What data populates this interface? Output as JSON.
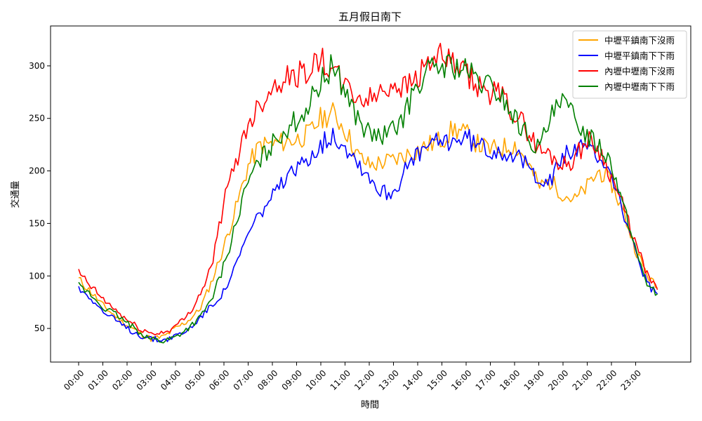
{
  "chart_data": {
    "type": "line",
    "title": "五月假日南下",
    "xlabel": "時間",
    "ylabel": "交通量",
    "ylim": [
      18,
      338
    ],
    "yticks": [
      50,
      100,
      150,
      200,
      250,
      300
    ],
    "xticks": [
      "00:00",
      "01:00",
      "02:00",
      "03:00",
      "04:00",
      "05:00",
      "06:00",
      "07:00",
      "08:00",
      "09:00",
      "10:00",
      "11:00",
      "12:00",
      "13:00",
      "14:00",
      "15:00",
      "16:00",
      "17:00",
      "18:00",
      "19:00",
      "20:00",
      "21:00",
      "22:00",
      "23:00"
    ],
    "x_unit": "hour of day",
    "x": [
      0,
      0.5,
      1,
      1.5,
      2,
      2.5,
      3,
      3.5,
      4,
      4.5,
      5,
      5.5,
      6,
      6.5,
      7,
      7.5,
      8,
      8.5,
      9,
      9.5,
      10,
      10.5,
      11,
      11.5,
      12,
      12.5,
      13,
      13.5,
      14,
      14.5,
      15,
      15.5,
      16,
      16.5,
      17,
      17.5,
      18,
      18.5,
      19,
      19.5,
      20,
      20.5,
      21,
      21.5,
      22,
      22.5,
      23,
      23.5,
      23.9
    ],
    "legend_position": "top-right",
    "grid": false,
    "series": [
      {
        "name": "中壢平鎮南下沒雨",
        "color": "#FFA500",
        "values": [
          97,
          85,
          72,
          62,
          53,
          46,
          40,
          42,
          50,
          57,
          68,
          95,
          128,
          165,
          205,
          225,
          225,
          228,
          230,
          235,
          250,
          255,
          240,
          215,
          205,
          208,
          210,
          215,
          220,
          225,
          230,
          240,
          235,
          225,
          220,
          222,
          225,
          210,
          185,
          190,
          178,
          172,
          185,
          200,
          188,
          160,
          125,
          100,
          88
        ]
      },
      {
        "name": "中壢平鎮南下下雨",
        "color": "#0000FF",
        "values": [
          88,
          80,
          66,
          58,
          50,
          44,
          40,
          39,
          43,
          48,
          60,
          72,
          85,
          110,
          140,
          160,
          175,
          190,
          200,
          215,
          225,
          235,
          225,
          210,
          195,
          180,
          180,
          200,
          215,
          225,
          228,
          230,
          232,
          225,
          220,
          220,
          215,
          205,
          195,
          190,
          215,
          220,
          220,
          215,
          198,
          160,
          120,
          92,
          82
        ]
      },
      {
        "name": "內壢中壢南下沒雨",
        "color": "#FF0000",
        "values": [
          103,
          90,
          78,
          68,
          58,
          50,
          45,
          46,
          52,
          62,
          82,
          110,
          170,
          210,
          245,
          265,
          280,
          290,
          290,
          298,
          305,
          295,
          280,
          270,
          268,
          275,
          285,
          280,
          290,
          305,
          308,
          300,
          290,
          280,
          275,
          270,
          255,
          240,
          220,
          215,
          205,
          212,
          230,
          220,
          195,
          165,
          130,
          100,
          86
        ]
      },
      {
        "name": "內壢中壢南下下雨",
        "color": "#008000",
        "values": [
          90,
          82,
          70,
          64,
          55,
          47,
          40,
          38,
          42,
          50,
          60,
          78,
          110,
          150,
          190,
          210,
          225,
          240,
          248,
          262,
          285,
          300,
          278,
          250,
          235,
          232,
          238,
          255,
          285,
          295,
          300,
          300,
          295,
          285,
          280,
          270,
          250,
          235,
          220,
          250,
          265,
          250,
          235,
          225,
          210,
          165,
          125,
          92,
          82
        ]
      }
    ]
  }
}
